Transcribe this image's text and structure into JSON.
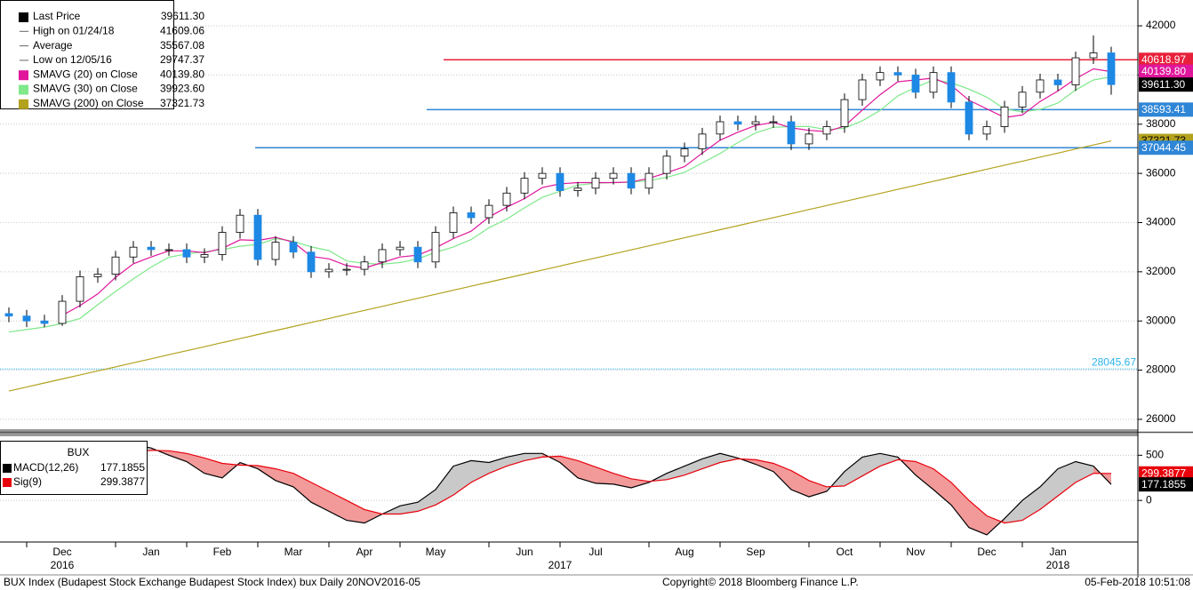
{
  "chart_data": [
    {
      "type": "candlestick",
      "categories": [
        null,
        null,
        null,
        "Dec",
        null,
        null,
        null,
        null,
        "Jan",
        null,
        null,
        null,
        "Feb",
        null,
        null,
        null,
        "Mar",
        null,
        null,
        null,
        "Apr",
        null,
        null,
        null,
        "May",
        null,
        null,
        null,
        null,
        "Jun",
        null,
        null,
        null,
        "Jul",
        null,
        null,
        null,
        null,
        "Aug",
        null,
        null,
        null,
        "Sep",
        null,
        null,
        null,
        null,
        "Oct",
        null,
        null,
        null,
        "Nov",
        null,
        null,
        null,
        "Dec",
        null,
        null,
        null,
        "Jan",
        null,
        null,
        null
      ],
      "year_labels": [
        null,
        null,
        null,
        "2016",
        null,
        null,
        null,
        null,
        null,
        null,
        null,
        null,
        null,
        null,
        null,
        null,
        null,
        null,
        null,
        null,
        null,
        null,
        null,
        null,
        null,
        null,
        null,
        null,
        null,
        null,
        null,
        "2017",
        null,
        null,
        null,
        null,
        null,
        null,
        null,
        null,
        null,
        null,
        null,
        null,
        null,
        null,
        null,
        null,
        null,
        null,
        null,
        null,
        null,
        null,
        null,
        null,
        null,
        null,
        null,
        "2018",
        null,
        null,
        null
      ],
      "open": [
        30300,
        30200,
        30000,
        29900,
        30800,
        31800,
        31900,
        32600,
        33000,
        32900,
        32900,
        32600,
        32700,
        33600,
        34300,
        32500,
        33200,
        32800,
        32000,
        32100,
        32100,
        32400,
        32900,
        33000,
        32400,
        33600,
        34400,
        34200,
        34700,
        35200,
        35800,
        36000,
        35300,
        35400,
        35800,
        36000,
        35400,
        36000,
        36700,
        37000,
        37600,
        38100,
        38000,
        38100,
        38100,
        37200,
        37600,
        37900,
        39000,
        39800,
        40100,
        40000,
        39300,
        40100,
        38900,
        37600,
        37900,
        38700,
        39300,
        39800,
        39600,
        40700,
        40900
      ],
      "high": [
        30550,
        30450,
        30250,
        31050,
        32050,
        32150,
        32850,
        33250,
        33250,
        33150,
        33150,
        32950,
        33850,
        34550,
        34550,
        33450,
        33450,
        33050,
        32350,
        32350,
        32650,
        33150,
        33250,
        33250,
        33850,
        34650,
        34650,
        34950,
        35450,
        36050,
        36250,
        36250,
        35650,
        36050,
        36250,
        36250,
        36250,
        36950,
        37250,
        37850,
        38350,
        38350,
        38350,
        38350,
        38350,
        37850,
        38150,
        39250,
        40050,
        40350,
        40350,
        40250,
        40350,
        40350,
        39150,
        38150,
        38950,
        39550,
        40050,
        40050,
        40950,
        41609.06,
        41150
      ],
      "low": [
        29950,
        29750,
        29747.37,
        29800,
        30550,
        31550,
        31650,
        32350,
        32650,
        32650,
        32350,
        32350,
        32450,
        33350,
        32250,
        32250,
        32550,
        31750,
        31750,
        31850,
        31850,
        32150,
        32650,
        32150,
        32150,
        33350,
        33950,
        33950,
        34450,
        34950,
        35550,
        35050,
        35050,
        35150,
        35550,
        35150,
        35150,
        35750,
        36450,
        36750,
        37350,
        37750,
        37750,
        37850,
        36950,
        36950,
        37350,
        37650,
        38750,
        39550,
        39750,
        39050,
        39050,
        38650,
        37350,
        37350,
        37650,
        38450,
        39050,
        39350,
        39350,
        40450,
        39200
      ],
      "close": [
        30200,
        30000,
        29900,
        30800,
        31800,
        31900,
        32600,
        33000,
        32900,
        32900,
        32600,
        32700,
        33600,
        34300,
        32500,
        33200,
        32800,
        32000,
        32100,
        32100,
        32400,
        32900,
        33000,
        32400,
        33600,
        34400,
        34200,
        34700,
        35200,
        35800,
        36000,
        35300,
        35400,
        35800,
        36000,
        35400,
        36000,
        36700,
        37000,
        37600,
        38100,
        38000,
        38100,
        38100,
        37200,
        37600,
        37900,
        39000,
        39800,
        40100,
        40000,
        39300,
        40100,
        38900,
        37600,
        37900,
        38700,
        39300,
        39800,
        39600,
        40700,
        40900,
        39611.3
      ],
      "up_color": "#ffffff",
      "down_color": "#1e88e5",
      "stats": [
        {
          "name": "Last Price",
          "value": 39611.3,
          "label": "39611.30",
          "color": "#000000"
        },
        {
          "name": "High on 01/24/18",
          "value": 41609.06
        },
        {
          "name": "Average",
          "value": 35567.08
        },
        {
          "name": "Low on 12/05/16",
          "value": 29747.37
        }
      ],
      "series": [
        {
          "name": "SMAVG (20) on Close",
          "color": "#e0169b",
          "last_label": "40139.80",
          "values": [
            null,
            null,
            null,
            30225,
            30625,
            31100,
            31775,
            32325,
            32600,
            32850,
            32850,
            32775,
            32950,
            33300,
            33275,
            33400,
            33200,
            32625,
            32525,
            32250,
            32150,
            32375,
            32600,
            32675,
            32975,
            33350,
            33650,
            34225,
            34625,
            34975,
            35425,
            35575,
            35625,
            35625,
            35625,
            35650,
            35800,
            36025,
            36275,
            36825,
            37350,
            37675,
            37950,
            38075,
            37850,
            37750,
            37700,
            37925,
            38575,
            39200,
            39725,
            39800,
            39875,
            39575,
            38975,
            38625,
            38275,
            38375,
            38925,
            39350,
            39850,
            40250,
            40139.8
          ]
        },
        {
          "name": "SMAVG (30) on Close",
          "color": "#7ee88a",
          "last_label": "39923.60",
          "values": [
            29550,
            29650,
            29750,
            29900,
            30100,
            30660,
            31200,
            31710,
            32190,
            32590,
            32725,
            32810,
            32900,
            33040,
            33110,
            33350,
            33240,
            33010,
            32860,
            32440,
            32340,
            32310,
            32375,
            32525,
            32790,
            33010,
            33310,
            33790,
            34140,
            34600,
            35025,
            35275,
            35525,
            35600,
            35625,
            35640,
            35710,
            35840,
            36040,
            36425,
            36810,
            37250,
            37650,
            37875,
            37900,
            37910,
            37775,
            37840,
            38140,
            38560,
            39150,
            39500,
            39800,
            39690,
            39425,
            39100,
            38625,
            38500,
            38600,
            38860,
            39390,
            39800,
            39923.6
          ]
        },
        {
          "name": "SMAVG (200) on Close",
          "color": "#b3a21e",
          "values": [
            27150,
            27314,
            27478,
            27642,
            27806,
            27970,
            28134,
            28298,
            28462,
            28626,
            28790,
            28954,
            29118,
            29282,
            29446,
            29610,
            29774,
            29938,
            30102,
            30266,
            30430,
            30594,
            30758,
            30922,
            31086,
            31250,
            31414,
            31578,
            31742,
            31906,
            32070,
            32234,
            32398,
            32562,
            32726,
            32890,
            33054,
            33218,
            33382,
            33546,
            33710,
            33874,
            34038,
            34202,
            34366,
            34530,
            34694,
            34858,
            35022,
            35186,
            35350,
            35514,
            35678,
            35842,
            36006,
            36170,
            36334,
            36498,
            36662,
            36826,
            36990,
            37154,
            37321.73
          ]
        }
      ],
      "hlines": [
        {
          "value": 40618.97,
          "color": "#e8213a"
        },
        {
          "value": 38593.41,
          "color": "#2f86d6"
        },
        {
          "value": 37044.45,
          "color": "#2f86d6"
        },
        {
          "value": 28045.67,
          "color": "#29b4e8",
          "style": "dotted"
        }
      ],
      "ylim": [
        25600,
        43050
      ],
      "yticks": [
        26000,
        28000,
        30000,
        32000,
        34000,
        36000,
        38000,
        40000,
        42000
      ]
    },
    {
      "type": "line",
      "title": "BUX",
      "series": [
        {
          "name": "MACD(12,26)",
          "color": "#000000",
          "values": [
            420,
            380,
            330,
            360,
            450,
            530,
            600,
            620,
            580,
            500,
            430,
            300,
            250,
            420,
            350,
            220,
            150,
            -20,
            -120,
            -220,
            -250,
            -150,
            -60,
            -20,
            120,
            380,
            440,
            420,
            480,
            520,
            520,
            420,
            250,
            190,
            180,
            140,
            200,
            300,
            380,
            460,
            520,
            470,
            400,
            320,
            120,
            40,
            100,
            320,
            480,
            520,
            480,
            280,
            120,
            -50,
            -300,
            -380,
            -200,
            0,
            150,
            350,
            430,
            380,
            177.1855
          ]
        },
        {
          "name": "Sig(9)",
          "color": "#e8000b",
          "values": [
            450,
            420,
            390,
            370,
            380,
            420,
            480,
            530,
            555,
            550,
            520,
            470,
            410,
            390,
            385,
            350,
            300,
            200,
            100,
            0,
            -100,
            -150,
            -150,
            -120,
            -50,
            60,
            200,
            300,
            380,
            440,
            480,
            490,
            440,
            370,
            300,
            240,
            210,
            230,
            280,
            350,
            420,
            460,
            450,
            410,
            330,
            220,
            150,
            160,
            270,
            380,
            450,
            430,
            350,
            200,
            0,
            -170,
            -250,
            -220,
            -100,
            50,
            200,
            300,
            299.3877
          ]
        }
      ],
      "fill_above": "#c9c9c9",
      "fill_below": "#f29a9a",
      "ylim": [
        -460,
        700
      ],
      "yticks": [
        0,
        500
      ]
    }
  ],
  "footer": {
    "left": "BUX Index (Budapest Stock Exchange Budapest Stock Index) bux  Daily 20NOV2016-05",
    "center": "Copyright© 2018 Bloomberg Finance L.P.",
    "right": "05-Feb-2018 10:51:08"
  }
}
